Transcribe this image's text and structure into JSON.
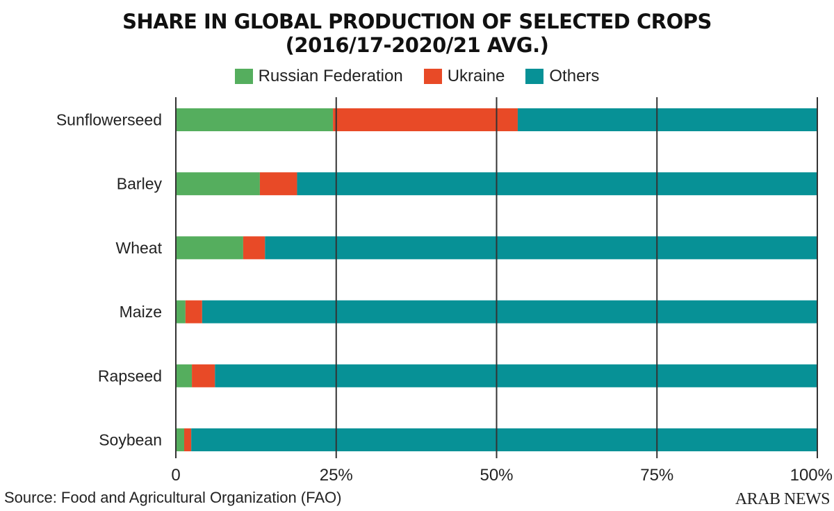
{
  "chart_data": {
    "type": "bar",
    "orientation": "horizontal",
    "stacked": true,
    "title": "SHARE IN GLOBAL PRODUCTION OF SELECTED CROPS",
    "subtitle": "(2016/17-2020/21 AVG.)",
    "categories": [
      "Sunflowerseed",
      "Barley",
      "Wheat",
      "Maize",
      "Rapseed",
      "Soybean"
    ],
    "series": [
      {
        "name": "Russian Federation",
        "color": "#55ae5e",
        "values": [
          24.5,
          13.1,
          10.5,
          1.5,
          2.5,
          1.3
        ]
      },
      {
        "name": "Ukraine",
        "color": "#e84a27",
        "values": [
          28.8,
          5.8,
          3.4,
          2.6,
          3.6,
          1.1
        ]
      },
      {
        "name": "Others",
        "color": "#079196",
        "values": [
          46.7,
          81.1,
          86.1,
          95.9,
          93.9,
          97.6
        ]
      }
    ],
    "xlim": [
      0,
      100
    ],
    "xticks": [
      0,
      25,
      50,
      75,
      100
    ],
    "xtick_labels": [
      "0",
      "25%",
      "50%",
      "75%",
      "100%"
    ],
    "xlabel": "",
    "ylabel": "",
    "grid": "vertical",
    "legend_position": "top-center"
  },
  "source": "Source: Food and Agricultural Organization (FAO)",
  "logo": "ARAB NEWS"
}
